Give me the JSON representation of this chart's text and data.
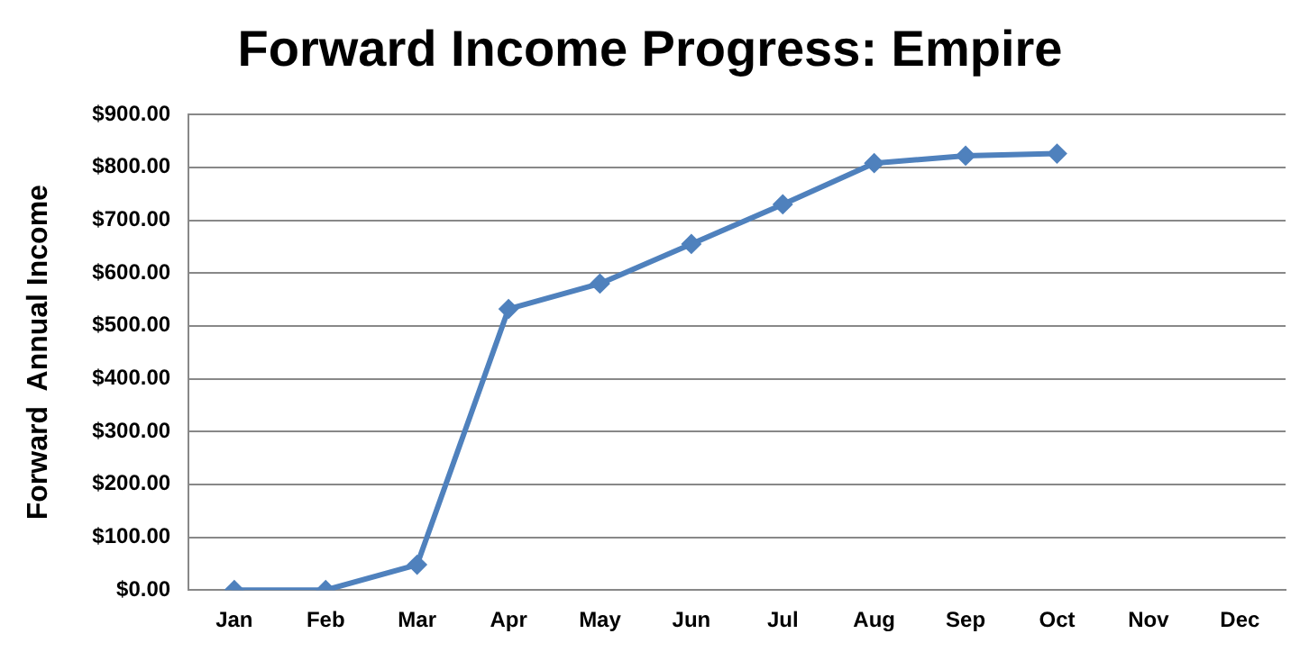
{
  "chart_data": {
    "type": "line",
    "title": "Forward Income Progress: Empire",
    "ylabel": "Forward  Annual Income",
    "categories": [
      "Jan",
      "Feb",
      "Mar",
      "Apr",
      "May",
      "Jun",
      "Jul",
      "Aug",
      "Sep",
      "Oct",
      "Nov",
      "Dec"
    ],
    "series": [
      {
        "color": "#4f81bd",
        "values": [
          0,
          0,
          48,
          532,
          580,
          655,
          730,
          808,
          822,
          826,
          null,
          null
        ]
      }
    ],
    "ylim": [
      0,
      900
    ],
    "yticks": [
      {
        "value": 0,
        "label": "$0.00"
      },
      {
        "value": 100,
        "label": "$100.00"
      },
      {
        "value": 200,
        "label": "$200.00"
      },
      {
        "value": 300,
        "label": "$300.00"
      },
      {
        "value": 400,
        "label": "$400.00"
      },
      {
        "value": 500,
        "label": "$500.00"
      },
      {
        "value": 600,
        "label": "$600.00"
      },
      {
        "value": 700,
        "label": "$700.00"
      },
      {
        "value": 800,
        "label": "$800.00"
      },
      {
        "value": 900,
        "label": "$900.00"
      }
    ],
    "grid": "y",
    "legend": false,
    "marker": "diamond",
    "line_style": "solid"
  }
}
